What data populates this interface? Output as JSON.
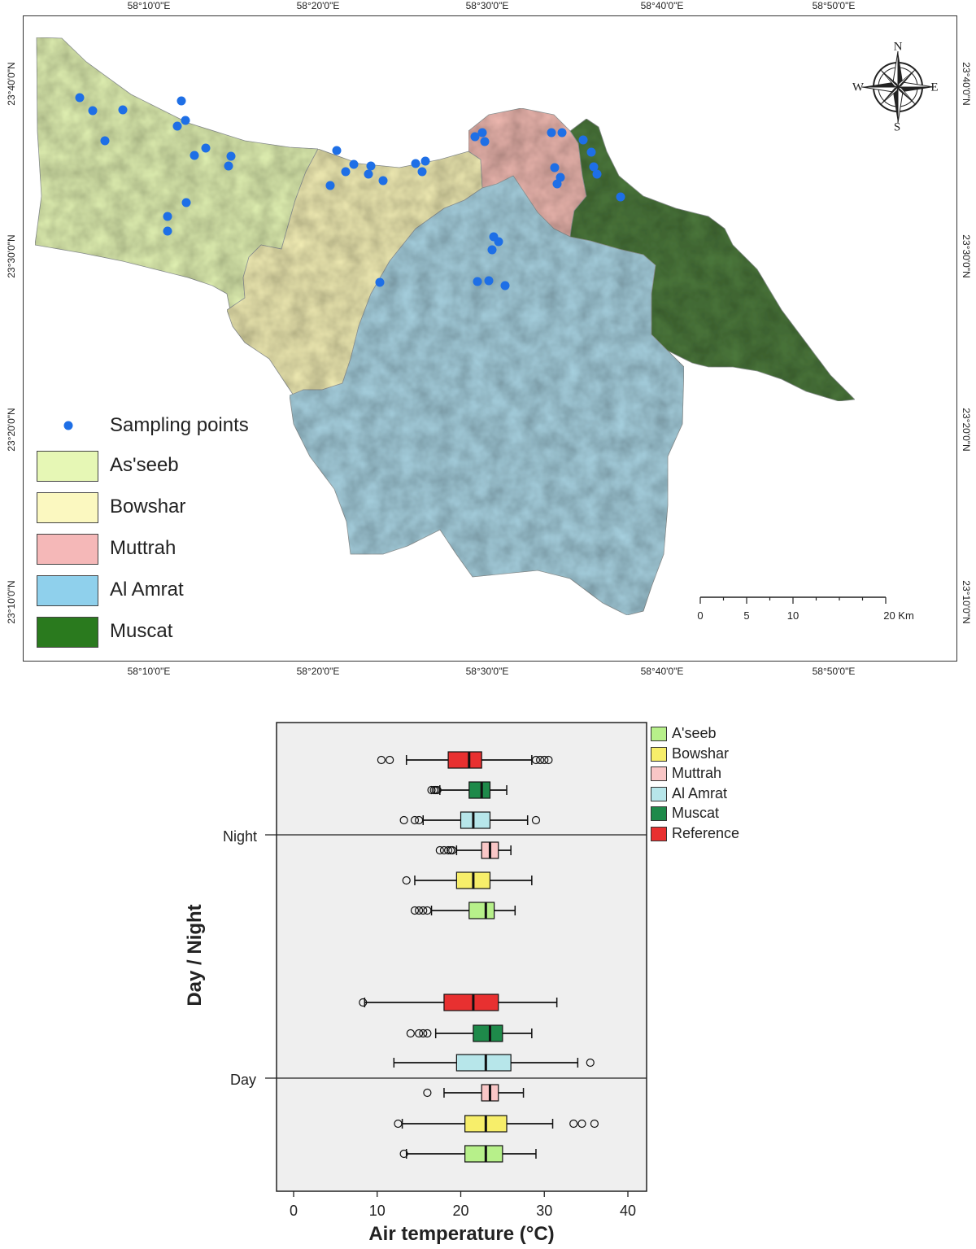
{
  "map": {
    "lon_ticks": [
      "58°10'0\"E",
      "58°20'0\"E",
      "58°30'0\"E",
      "58°40'0\"E",
      "58°50'0\"E"
    ],
    "lat_ticks": [
      "23°40'0\"N",
      "23°30'0\"N",
      "23°20'0\"N",
      "23°10'0\"N"
    ],
    "legend": {
      "sampling_points": "Sampling points",
      "items": [
        {
          "label": "As'seeb",
          "color": "#e6f7b5"
        },
        {
          "label": "Bowshar",
          "color": "#fbf8c0"
        },
        {
          "label": "Muttrah",
          "color": "#f5b8b8"
        },
        {
          "label": "Al Amrat",
          "color": "#8fd0ec"
        },
        {
          "label": "Muscat",
          "color": "#2a7a1e"
        }
      ]
    },
    "region_colors": {
      "asseeb": "#e3f3b4",
      "bowshar": "#f4efb6",
      "muttrah": "#eeb8b0",
      "alamrat": "#a9d3e2",
      "muscat": "#4d7a3d"
    },
    "point_color": "#1e6fe6",
    "compass": {
      "n": "N",
      "s": "S",
      "e": "E",
      "w": "W",
      "icon": "compass-rose-icon"
    },
    "scale_bar": {
      "labels": [
        "0",
        "5",
        "10",
        "20 Km"
      ],
      "km": [
        0,
        5,
        10,
        20
      ]
    }
  },
  "chart_data": {
    "type": "boxplot",
    "orientation": "horizontal",
    "xlabel": "Air temperature (°C)",
    "ylabel": "Day / Night",
    "xlim": [
      -2,
      42
    ],
    "xticks": [
      0,
      10,
      20,
      30,
      40
    ],
    "categories": [
      "Night",
      "Day"
    ],
    "legend": [
      {
        "name": "A'seeb",
        "color": "#b7f08a"
      },
      {
        "name": "Bowshar",
        "color": "#f7ee6a"
      },
      {
        "name": "Muttrah",
        "color": "#f9c6c6"
      },
      {
        "name": "Al Amrat",
        "color": "#b7e6ea"
      },
      {
        "name": "Muscat",
        "color": "#1e8a4a"
      },
      {
        "name": "Reference",
        "color": "#e83030"
      }
    ],
    "groups": [
      {
        "category": "Night",
        "boxes": [
          {
            "series": "Reference",
            "whisker_low": 13.5,
            "q1": 18.5,
            "median": 21.0,
            "q3": 22.5,
            "whisker_high": 28.5,
            "outliers": [
              10.5,
              11.5,
              29.0,
              29.5,
              30.0,
              30.5
            ]
          },
          {
            "series": "Muscat",
            "whisker_low": 17.5,
            "q1": 21.0,
            "median": 22.5,
            "q3": 23.5,
            "whisker_high": 25.5,
            "outliers": [
              16.5,
              16.8,
              17.0,
              17.2
            ]
          },
          {
            "series": "Al Amrat",
            "whisker_low": 15.5,
            "q1": 20.0,
            "median": 21.5,
            "q3": 23.5,
            "whisker_high": 28.0,
            "outliers": [
              13.2,
              14.5,
              15.0,
              29.0
            ]
          },
          {
            "series": "Muttrah",
            "whisker_low": 19.5,
            "q1": 22.5,
            "median": 23.5,
            "q3": 24.5,
            "whisker_high": 26.0,
            "outliers": [
              17.5,
              18.0,
              18.5,
              18.8,
              19.0
            ]
          },
          {
            "series": "Bowshar",
            "whisker_low": 14.5,
            "q1": 19.5,
            "median": 21.5,
            "q3": 23.5,
            "whisker_high": 28.5,
            "outliers": [
              13.5
            ]
          },
          {
            "series": "A'seeb",
            "whisker_low": 16.5,
            "q1": 21.0,
            "median": 23.0,
            "q3": 24.0,
            "whisker_high": 26.5,
            "outliers": [
              14.5,
              15.0,
              15.5,
              16.0
            ]
          }
        ]
      },
      {
        "category": "Day",
        "boxes": [
          {
            "series": "Reference",
            "whisker_low": 8.5,
            "q1": 18.0,
            "median": 21.5,
            "q3": 24.5,
            "whisker_high": 31.5,
            "outliers": [
              8.3
            ]
          },
          {
            "series": "Muscat",
            "whisker_low": 17.0,
            "q1": 21.5,
            "median": 23.5,
            "q3": 25.0,
            "whisker_high": 28.5,
            "outliers": [
              14.0,
              15.0,
              15.5,
              16.0
            ]
          },
          {
            "series": "Al Amrat",
            "whisker_low": 12.0,
            "q1": 19.5,
            "median": 23.0,
            "q3": 26.0,
            "whisker_high": 34.0,
            "outliers": [
              35.5
            ]
          },
          {
            "series": "Muttrah",
            "whisker_low": 18.0,
            "q1": 22.5,
            "median": 23.5,
            "q3": 24.5,
            "whisker_high": 27.5,
            "outliers": [
              16.0
            ]
          },
          {
            "series": "Bowshar",
            "whisker_low": 13.0,
            "q1": 20.5,
            "median": 23.0,
            "q3": 25.5,
            "whisker_high": 31.0,
            "outliers": [
              12.5,
              33.5,
              34.5,
              36.0
            ]
          },
          {
            "series": "A'seeb",
            "whisker_low": 13.5,
            "q1": 20.5,
            "median": 23.0,
            "q3": 25.0,
            "whisker_high": 29.0,
            "outliers": [
              13.2
            ]
          }
        ]
      }
    ]
  }
}
